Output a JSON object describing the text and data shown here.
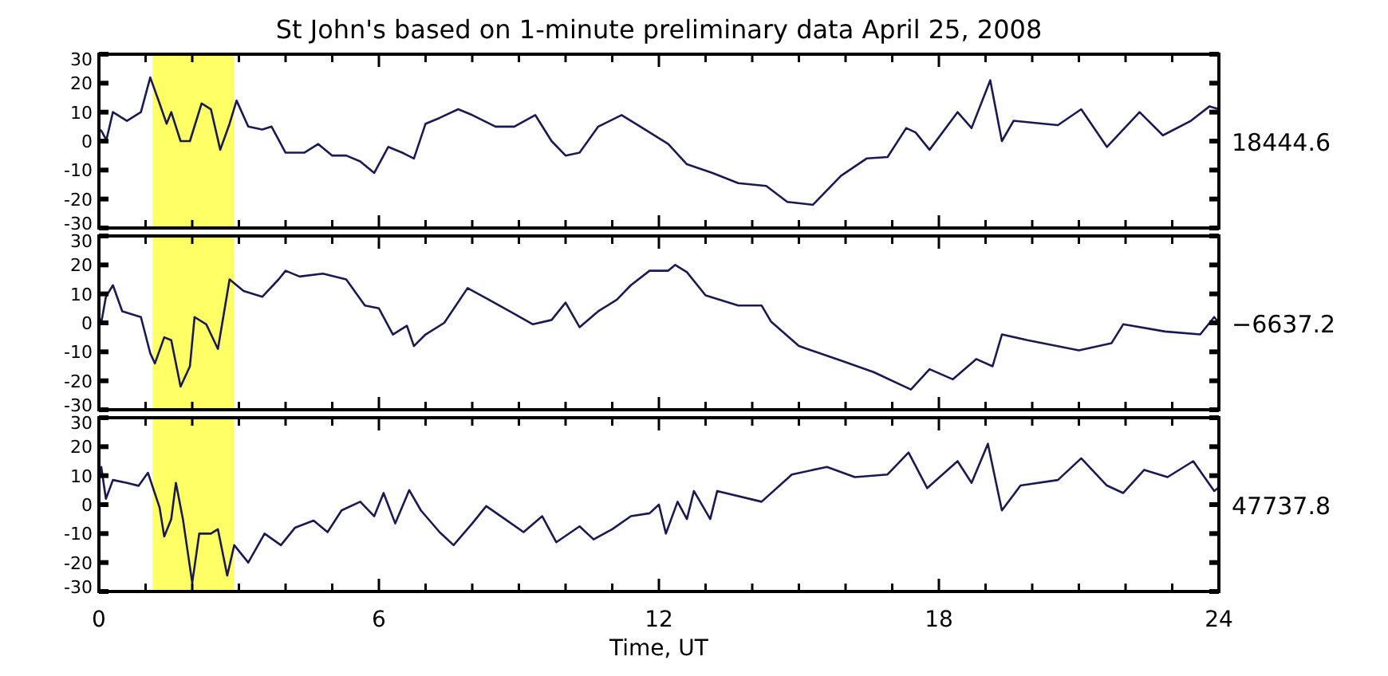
{
  "chart_data": [
    {
      "type": "line",
      "title": "St John's based on 1-minute preliminary data April 25, 2008",
      "annotations": [
        "18444.6"
      ],
      "xlim": [
        0,
        24
      ],
      "xticks": [
        0,
        {
          "value": 1,
          "label": null
        },
        {
          "value": 2,
          "label": null
        },
        {
          "value": 3,
          "label": null
        },
        {
          "value": 4,
          "label": null
        },
        {
          "value": 5,
          "label": null
        },
        6,
        {
          "value": 7,
          "label": null
        },
        {
          "value": 8,
          "label": null
        },
        {
          "value": 9,
          "label": null
        },
        {
          "value": 10,
          "label": null
        },
        {
          "value": 11,
          "label": null
        },
        12,
        {
          "value": 13,
          "label": null
        },
        {
          "value": 14,
          "label": null
        },
        {
          "value": 15,
          "label": null
        },
        {
          "value": 16,
          "label": null
        },
        {
          "value": 17,
          "label": null
        },
        18,
        {
          "value": 19,
          "label": null
        },
        {
          "value": 20,
          "label": null
        },
        {
          "value": 21,
          "label": null
        },
        {
          "value": 22,
          "label": null
        },
        {
          "value": 23,
          "label": null
        },
        24
      ],
      "ylim": [
        -30,
        30
      ],
      "yticks": [
        -30,
        -20,
        -10,
        0,
        10,
        20,
        30
      ],
      "tick_labels": "y",
      "bands": [
        {
          "axis": "x",
          "from": 1.15,
          "to": 2.9,
          "color": "#ffff66"
        }
      ],
      "series": [
        {
          "color": "#1a1a50",
          "x": [
            0,
            0.05,
            0.16,
            0.3,
            0.6,
            0.9,
            1.1,
            1.3,
            1.45,
            1.55,
            1.75,
            1.95,
            2.2,
            2.4,
            2.6,
            2.8,
            2.95,
            3.2,
            3.5,
            3.7,
            4.0,
            4.4,
            4.7,
            5.0,
            5.3,
            5.6,
            5.9,
            6.2,
            6.5,
            6.75,
            7.0,
            7.3,
            7.7,
            8.0,
            8.5,
            8.9,
            9.35,
            9.7,
            10.0,
            10.3,
            10.7,
            11.2,
            11.7,
            12.2,
            12.6,
            13.15,
            13.7,
            14.3,
            14.75,
            15.3,
            15.9,
            16.45,
            16.9,
            17.3,
            17.5,
            17.8,
            18.4,
            18.7,
            19.1,
            19.35,
            19.6,
            20.55,
            21.05,
            21.6,
            22.3,
            22.8,
            23.4,
            23.8,
            24
          ],
          "values": [
            4,
            3.6,
            0.4,
            10,
            7,
            10,
            22,
            13,
            6,
            10,
            0,
            0,
            13,
            11,
            -3,
            6,
            14,
            5,
            4,
            5,
            -4,
            -4,
            -1,
            -5,
            -5,
            -7,
            -11,
            -2,
            -4,
            -6,
            6,
            8,
            11,
            9,
            5,
            5,
            9,
            0,
            -5,
            -4,
            5,
            9,
            4,
            -1,
            -8,
            -11,
            -14.5,
            -15.5,
            -21,
            -22,
            -12,
            -6,
            -5.5,
            4.5,
            3,
            -3,
            10,
            4.5,
            21,
            0,
            7,
            5.5,
            11,
            -2,
            10,
            2,
            7,
            12,
            11
          ]
        }
      ]
    },
    {
      "type": "line",
      "annotations": [
        "−6637.2"
      ],
      "xlim": [
        0,
        24
      ],
      "xticks": [
        0,
        {
          "value": 1,
          "label": null
        },
        {
          "value": 2,
          "label": null
        },
        {
          "value": 3,
          "label": null
        },
        {
          "value": 4,
          "label": null
        },
        {
          "value": 5,
          "label": null
        },
        6,
        {
          "value": 7,
          "label": null
        },
        {
          "value": 8,
          "label": null
        },
        {
          "value": 9,
          "label": null
        },
        {
          "value": 10,
          "label": null
        },
        {
          "value": 11,
          "label": null
        },
        12,
        {
          "value": 13,
          "label": null
        },
        {
          "value": 14,
          "label": null
        },
        {
          "value": 15,
          "label": null
        },
        {
          "value": 16,
          "label": null
        },
        {
          "value": 17,
          "label": null
        },
        18,
        {
          "value": 19,
          "label": null
        },
        {
          "value": 20,
          "label": null
        },
        {
          "value": 21,
          "label": null
        },
        {
          "value": 22,
          "label": null
        },
        {
          "value": 23,
          "label": null
        },
        24
      ],
      "ylim": [
        -30,
        30
      ],
      "yticks": [
        -30,
        -20,
        -10,
        0,
        10,
        20,
        30
      ],
      "tick_labels": "y",
      "bands": [
        {
          "axis": "x",
          "from": 1.15,
          "to": 2.9,
          "color": "#ffff66"
        }
      ],
      "series": [
        {
          "color": "#1a1a50",
          "x": [
            0,
            0.05,
            0.15,
            0.3,
            0.5,
            0.9,
            1.1,
            1.2,
            1.4,
            1.55,
            1.75,
            1.95,
            2.05,
            2.3,
            2.55,
            2.8,
            3.1,
            3.5,
            3.85,
            4.0,
            4.3,
            4.8,
            5.3,
            5.7,
            6.0,
            6.3,
            6.6,
            6.75,
            7.0,
            7.4,
            7.9,
            8.3,
            8.8,
            9.3,
            9.7,
            10.0,
            10.3,
            10.7,
            11.1,
            11.4,
            11.8,
            12.2,
            12.35,
            12.6,
            13.0,
            13.7,
            14.2,
            14.4,
            15.0,
            15.9,
            16.6,
            17.4,
            17.8,
            18.3,
            18.8,
            19.15,
            19.35,
            19.9,
            21.0,
            21.7,
            21.95,
            22.85,
            23.6,
            23.9,
            24
          ],
          "values": [
            2,
            0,
            9,
            13,
            4,
            2,
            -10.5,
            -14,
            -5,
            -6,
            -22,
            -15,
            2,
            -0.5,
            -9,
            15,
            11,
            9,
            15,
            18,
            16,
            17,
            15,
            6,
            5,
            -4,
            -1,
            -8,
            -4,
            0,
            12,
            8.5,
            4,
            -0.5,
            1,
            7,
            -1.5,
            4,
            8,
            13,
            18,
            18,
            20,
            17.5,
            9.5,
            6,
            6,
            0.5,
            -8,
            -13,
            -17,
            -23,
            -16,
            -19.5,
            -12.5,
            -15,
            -4,
            -6,
            -9.5,
            -7,
            -0.5,
            -3,
            -4,
            2,
            0
          ]
        }
      ]
    },
    {
      "type": "line",
      "xlabel": "Time, UT",
      "annotations": [
        "47737.8"
      ],
      "xlim": [
        0,
        24
      ],
      "xticks": [
        0,
        {
          "value": 1,
          "label": null
        },
        {
          "value": 2,
          "label": null
        },
        {
          "value": 3,
          "label": null
        },
        {
          "value": 4,
          "label": null
        },
        {
          "value": 5,
          "label": null
        },
        6,
        {
          "value": 7,
          "label": null
        },
        {
          "value": 8,
          "label": null
        },
        {
          "value": 9,
          "label": null
        },
        {
          "value": 10,
          "label": null
        },
        {
          "value": 11,
          "label": null
        },
        12,
        {
          "value": 13,
          "label": null
        },
        {
          "value": 14,
          "label": null
        },
        {
          "value": 15,
          "label": null
        },
        {
          "value": 16,
          "label": null
        },
        {
          "value": 17,
          "label": null
        },
        18,
        {
          "value": 19,
          "label": null
        },
        {
          "value": 20,
          "label": null
        },
        {
          "value": 21,
          "label": null
        },
        {
          "value": 22,
          "label": null
        },
        {
          "value": 23,
          "label": null
        },
        24
      ],
      "ylim": [
        -30,
        30
      ],
      "yticks": [
        -30,
        -20,
        -10,
        0,
        10,
        20,
        30
      ],
      "bands": [
        {
          "axis": "x",
          "from": 1.15,
          "to": 2.9,
          "color": "#ffff66"
        }
      ],
      "series": [
        {
          "color": "#1a1a50",
          "x": [
            0,
            0.05,
            0.15,
            0.3,
            0.6,
            0.85,
            1.05,
            1.3,
            1.4,
            1.55,
            1.65,
            1.8,
            2.0,
            2.15,
            2.4,
            2.55,
            2.75,
            2.9,
            3.2,
            3.55,
            3.9,
            4.2,
            4.6,
            4.9,
            5.2,
            5.6,
            5.9,
            6.1,
            6.35,
            6.65,
            6.9,
            7.3,
            7.6,
            8.0,
            8.3,
            8.7,
            9.1,
            9.5,
            9.8,
            10.3,
            10.6,
            11.0,
            11.4,
            11.8,
            12.0,
            12.15,
            12.4,
            12.6,
            12.75,
            13.1,
            13.25,
            14.2,
            14.85,
            15.6,
            16.2,
            16.9,
            17.35,
            17.75,
            18.4,
            18.7,
            19.05,
            19.35,
            19.75,
            20.55,
            21.05,
            21.6,
            21.95,
            22.4,
            22.9,
            23.45,
            23.9,
            24
          ],
          "values": [
            8,
            13,
            2,
            8.5,
            7.5,
            6.5,
            11,
            -1,
            -11,
            -5,
            7.5,
            -5,
            -27,
            -10,
            -10,
            -8.5,
            -24.5,
            -14,
            -20,
            -10,
            -14,
            -8,
            -5.5,
            -9.5,
            -2,
            1,
            -4,
            4,
            -6.5,
            5,
            -2,
            -9.5,
            -14,
            -6.5,
            -0.5,
            -5,
            -9.5,
            -4,
            -13,
            -7.5,
            -12,
            -8.5,
            -4,
            -3,
            0,
            -10,
            1,
            -5,
            4.7,
            -5,
            4.7,
            1,
            10.4,
            13,
            9.5,
            10.4,
            18,
            5.7,
            15,
            7.5,
            21,
            -2,
            6.6,
            8.5,
            16,
            6.6,
            4,
            12,
            9.5,
            15,
            4.7,
            6
          ]
        }
      ]
    }
  ]
}
